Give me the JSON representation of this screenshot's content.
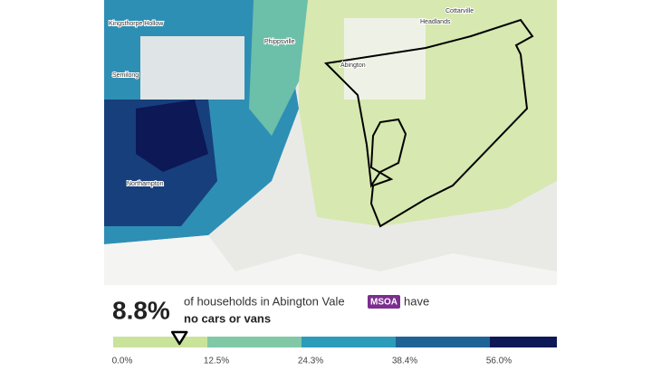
{
  "map": {
    "labels": [
      "Kingsthorpe Hollow",
      "Phippsville",
      "Headlands",
      "Cottarville",
      "Abington",
      "Semilong",
      "Northampton"
    ]
  },
  "legend": {
    "value": 8.8,
    "value_label": "8.8%",
    "text_before": "of households in Abington Vale",
    "badge": "MSOA",
    "text_after": "have",
    "subject": "no cars or vans",
    "colors": [
      "#c9e39b",
      "#80c8a6",
      "#2b9cb9",
      "#1f6396",
      "#0d1856"
    ],
    "ticks": [
      {
        "value": 0,
        "label": "0.0%"
      },
      {
        "value": 12.5,
        "label": "12.5%"
      },
      {
        "value": 24.3,
        "label": "24.3%"
      },
      {
        "value": 38.4,
        "label": "38.4%"
      },
      {
        "value": 56.0,
        "label": "56.0%"
      }
    ]
  }
}
